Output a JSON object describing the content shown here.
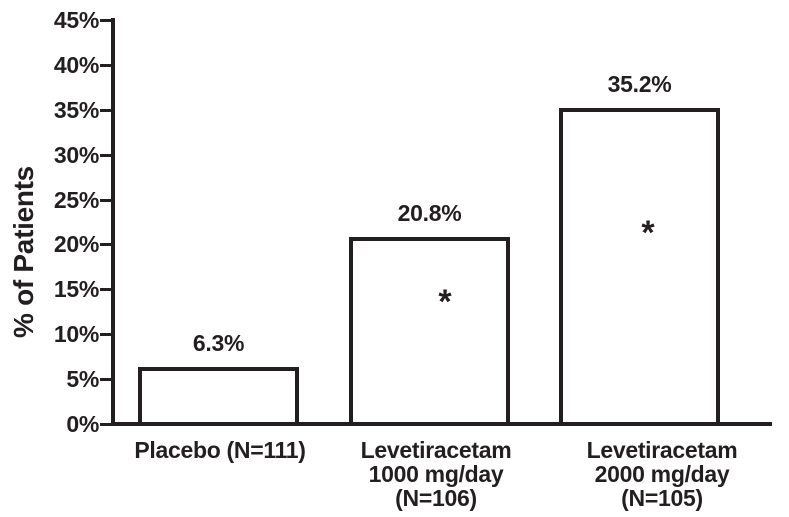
{
  "chart_data": {
    "type": "bar",
    "title": "",
    "ylabel": "% of Patients",
    "xlabel": "",
    "ylim": [
      0,
      45
    ],
    "ytick_step": 5,
    "ytick_labels": [
      "0%",
      "5%",
      "10%",
      "15%",
      "20%",
      "25%",
      "30%",
      "35%",
      "40%",
      "45%"
    ],
    "grid": false,
    "legend_position": "none",
    "bar_fill_color": "#ffffff",
    "ink_color": "#231f20",
    "categories": [
      "Placebo (N=111)",
      "Levetiracetam 1000 mg/day (N=106)",
      "Levetiracetam 2000 mg/day (N=105)"
    ],
    "category_label_lines": [
      [
        "Placebo (N=111)"
      ],
      [
        "Levetiracetam",
        "1000 mg/day",
        "(N=106)"
      ],
      [
        "Levetiracetam",
        "2000 mg/day",
        "(N=105)"
      ]
    ],
    "values": [
      6.3,
      20.8,
      35.2
    ],
    "data_labels": [
      "6.3%",
      "20.8%",
      "35.2%"
    ],
    "significance_marker": "*",
    "significant": [
      false,
      true,
      true
    ]
  }
}
